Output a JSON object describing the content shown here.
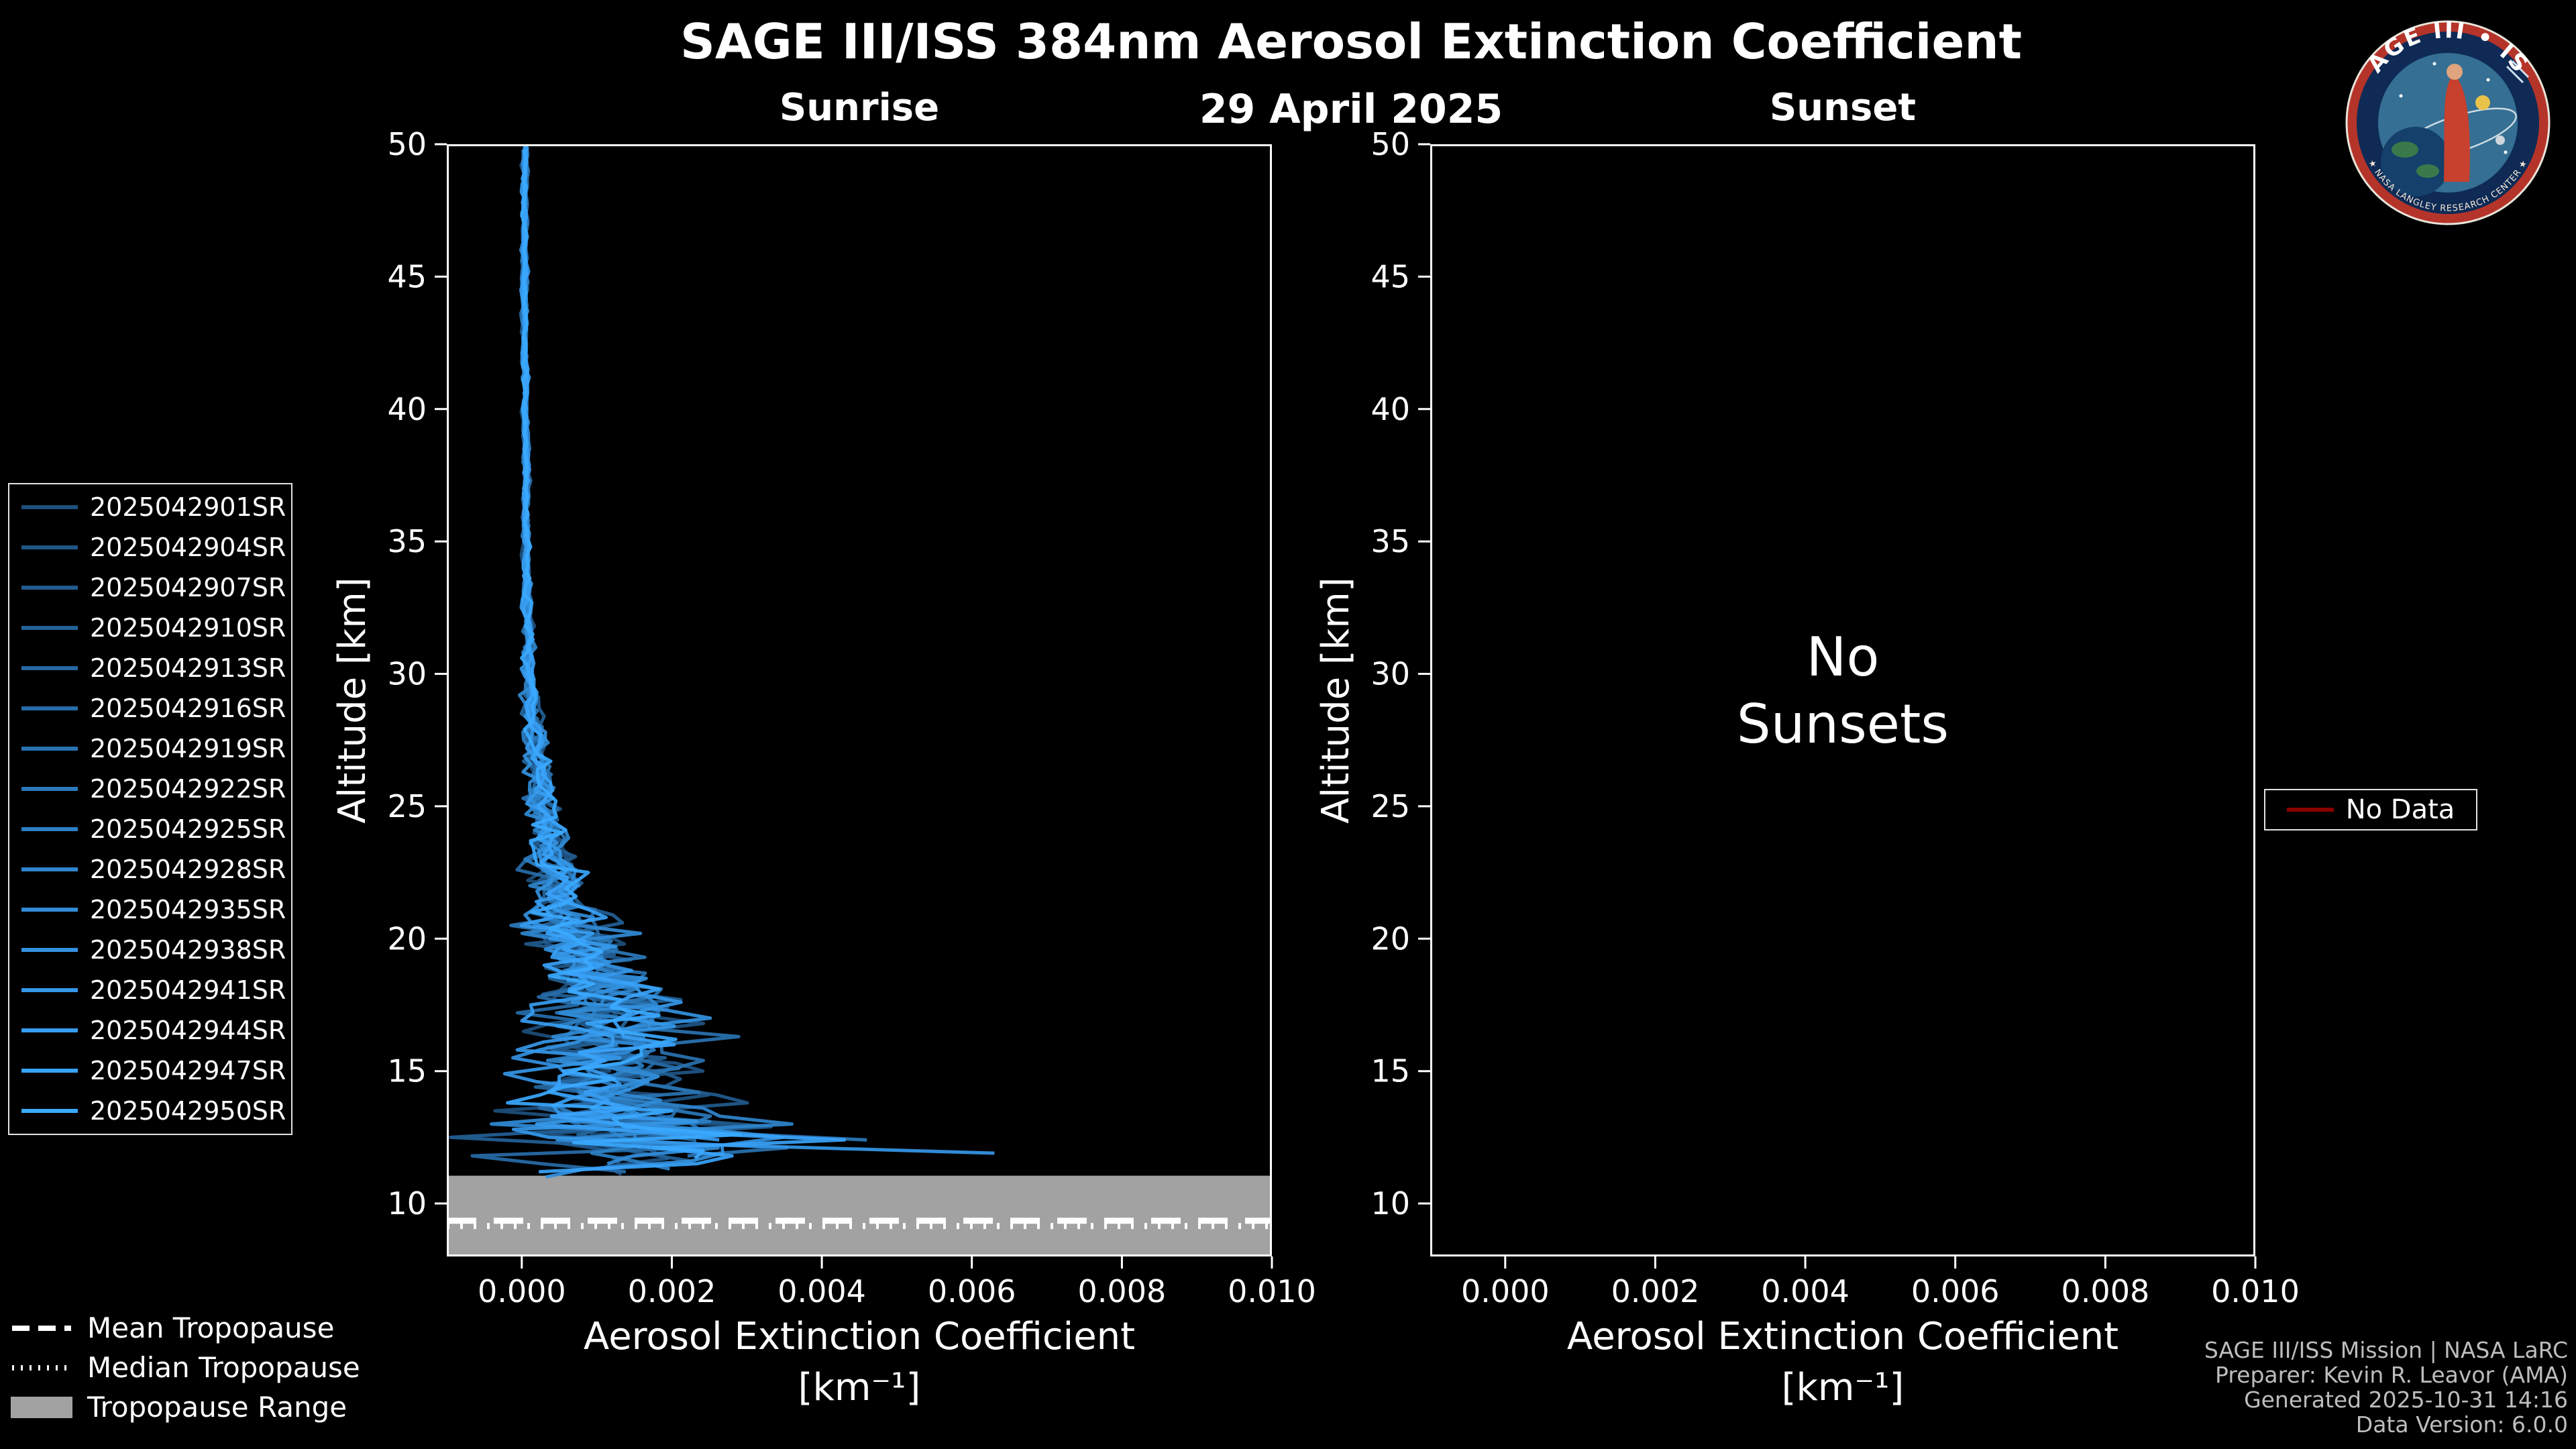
{
  "page": {
    "title": "SAGE III/ISS 384nm Aerosol Extinction Coefficient",
    "date": "29 April 2025"
  },
  "logo": {
    "title": "SAGE III • ISS",
    "ring_text": "★ NASA LANGLEY RESEARCH CENTER ★"
  },
  "tropopause_legend": {
    "mean": "Mean Tropopause",
    "median": "Median Tropopause",
    "range": "Tropopause Range"
  },
  "no_data_legend": {
    "label": "No Data",
    "color": "#8B0000"
  },
  "footer": {
    "line1": "SAGE III/ISS Mission | NASA LaRC",
    "line2": "Preparer: Kevin R. Leavor (AMA)",
    "line3": "Generated 2025-10-31 14:16",
    "line4": "Data Version: 6.0.0"
  },
  "chart_data": {
    "type": "line",
    "panels": [
      {
        "id": "sunrise",
        "title": "Sunrise",
        "xlabel": "Aerosol Extinction Coefficient",
        "xlabel_units": "[km⁻¹]",
        "ylabel": "Altitude [km]",
        "xlim": [
          -0.001,
          0.01
        ],
        "ylim": [
          8,
          50
        ],
        "xtick_values": [
          0.0,
          0.002,
          0.004,
          0.006,
          0.008,
          0.01
        ],
        "xtick_labels": [
          "0.000",
          "0.002",
          "0.004",
          "0.006",
          "0.008",
          "0.010"
        ],
        "ytick_values": [
          10,
          15,
          20,
          25,
          30,
          35,
          40,
          45,
          50
        ],
        "ytick_labels": [
          "10",
          "15",
          "20",
          "25",
          "30",
          "35",
          "40",
          "45",
          "50"
        ],
        "grid": false,
        "tropopause": {
          "mean_km": 9.35,
          "median_km": 9.15,
          "range_km": [
            8.0,
            11.05
          ],
          "range_color": "#a2a2a2"
        },
        "profiles": {
          "mean": {
            "altitude": [
              11,
              11.5,
              12,
              12.5,
              13,
              14,
              15,
              16,
              17,
              18,
              19,
              20,
              21,
              22,
              24,
              26,
              28,
              30,
              35,
              40,
              45,
              50
            ],
            "extinction": [
              0.0012,
              0.0015,
              0.0019,
              0.0018,
              0.0014,
              0.0012,
              0.00115,
              0.0012,
              0.00115,
              0.00105,
              0.0009,
              0.00075,
              0.0006,
              0.0005,
              0.00035,
              0.00025,
              0.00015,
              0.0001,
              6e-05,
              5e-05,
              4e-05,
              4e-05
            ]
          },
          "sigma": {
            "altitude": [
              11,
              11.5,
              12,
              12.5,
              13,
              14,
              15,
              16,
              17,
              18,
              19,
              20,
              21,
              22,
              24,
              26,
              28,
              30,
              35,
              40,
              45,
              50
            ],
            "sigma": [
              0.001,
              0.0013,
              0.0016,
              0.0015,
              0.0011,
              0.00085,
              0.00075,
              0.00075,
              0.0007,
              0.00065,
              0.00055,
              0.00045,
              0.00035,
              0.00028,
              0.00018,
              0.00012,
              8e-05,
              5e-05,
              3e-05,
              2.5e-05,
              2.5e-05,
              2.5e-05
            ]
          }
        },
        "series": [
          {
            "name": "2025042901SR",
            "color": "#1d4f7c",
            "seed": 101,
            "alt_min": 11.4
          },
          {
            "name": "2025042904SR",
            "color": "#1f5585",
            "seed": 102,
            "alt_min": 11.1
          },
          {
            "name": "2025042907SR",
            "color": "#215b8e",
            "seed": 103,
            "alt_min": 12.0
          },
          {
            "name": "2025042910SR",
            "color": "#236197",
            "seed": 104,
            "alt_min": 11.6,
            "spikes": [
              {
                "alt": 12.55,
                "val": -0.00095
              }
            ]
          },
          {
            "name": "2025042913SR",
            "color": "#2567a0",
            "seed": 105,
            "alt_min": 12.3
          },
          {
            "name": "2025042916SR",
            "color": "#276da9",
            "seed": 106,
            "alt_min": 11.2
          },
          {
            "name": "2025042919SR",
            "color": "#2973b2",
            "seed": 107,
            "alt_min": 11.8
          },
          {
            "name": "2025042922SR",
            "color": "#2b79bb",
            "seed": 108,
            "alt_min": 12.4,
            "spikes": [
              {
                "alt": 12.5,
                "val": 0.0046
              }
            ]
          },
          {
            "name": "2025042925SR",
            "color": "#2d7fc4",
            "seed": 109,
            "alt_min": 11.3
          },
          {
            "name": "2025042928SR",
            "color": "#2f85cd",
            "seed": 110,
            "alt_min": 12.1,
            "spikes": [
              {
                "alt": 12.9,
                "val": 0.0036
              }
            ]
          },
          {
            "name": "2025042935SR",
            "color": "#318bd6",
            "seed": 111,
            "alt_min": 11.5
          },
          {
            "name": "2025042938SR",
            "color": "#3391df",
            "seed": 112,
            "alt_min": 11.0
          },
          {
            "name": "2025042941SR",
            "color": "#3597e8",
            "seed": 113,
            "alt_min": 11.9,
            "spikes": [
              {
                "alt": 12.05,
                "val": 0.0063
              }
            ]
          },
          {
            "name": "2025042944SR",
            "color": "#379df1",
            "seed": 114,
            "alt_min": 12.4
          },
          {
            "name": "2025042947SR",
            "color": "#39a3fa",
            "seed": 115,
            "alt_min": 11.2,
            "spikes": [
              {
                "alt": 12.3,
                "val": 0.0043
              }
            ]
          },
          {
            "name": "2025042950SR",
            "color": "#3aa9ff",
            "seed": 116,
            "alt_min": 11.7
          }
        ]
      },
      {
        "id": "sunset",
        "title": "Sunset",
        "xlabel": "Aerosol Extinction Coefficient",
        "xlabel_units": "[km⁻¹]",
        "ylabel": "Altitude [km]",
        "xlim": [
          -0.001,
          0.01
        ],
        "ylim": [
          8,
          50
        ],
        "xtick_values": [
          0.0,
          0.002,
          0.004,
          0.006,
          0.008,
          0.01
        ],
        "xtick_labels": [
          "0.000",
          "0.002",
          "0.004",
          "0.006",
          "0.008",
          "0.010"
        ],
        "ytick_values": [
          10,
          15,
          20,
          25,
          30,
          35,
          40,
          45,
          50
        ],
        "ytick_labels": [
          "10",
          "15",
          "20",
          "25",
          "30",
          "35",
          "40",
          "45",
          "50"
        ],
        "grid": false,
        "annotation": "No\nSunsets",
        "series": []
      }
    ]
  }
}
